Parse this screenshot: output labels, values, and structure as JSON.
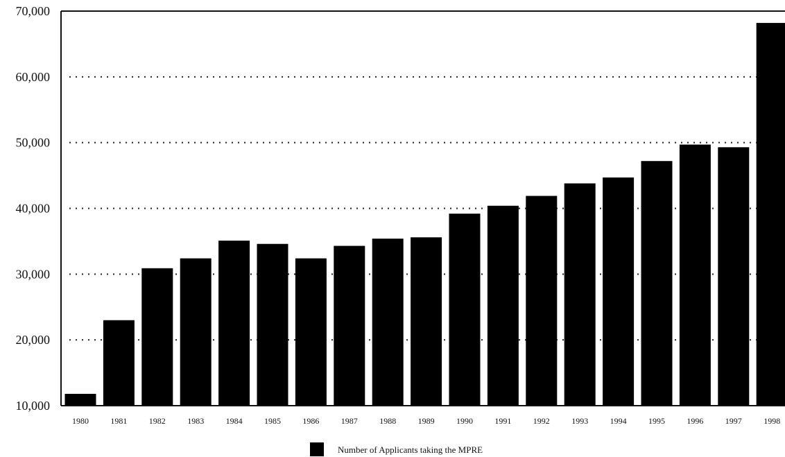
{
  "chart_data": {
    "type": "bar",
    "categories": [
      "1980",
      "1981",
      "1982",
      "1983",
      "1984",
      "1985",
      "1986",
      "1987",
      "1988",
      "1989",
      "1990",
      "1991",
      "1992",
      "1993",
      "1994",
      "1995",
      "1996",
      "1997",
      "1998"
    ],
    "series": [
      {
        "name": "Number of Applicants taking the MPRE",
        "values": [
          11800,
          23000,
          30900,
          32400,
          35100,
          34600,
          32400,
          34300,
          35400,
          35600,
          39200,
          40400,
          41900,
          43800,
          44700,
          47200,
          49700,
          49300,
          68200
        ]
      }
    ],
    "yticks": [
      "10,000",
      "20,000",
      "30,000",
      "40,000",
      "50,000",
      "60,000",
      "70,000"
    ],
    "ylim": [
      10000,
      70000
    ],
    "grid": "dotted horizontal",
    "legend": {
      "position": "bottom",
      "label": "Number of Applicants taking the MPRE"
    },
    "colors": {
      "bar": "#000000"
    }
  }
}
